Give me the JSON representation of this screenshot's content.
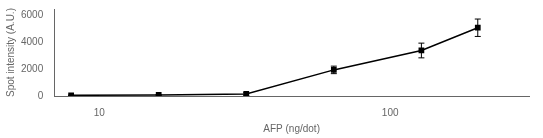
{
  "chart_data": {
    "type": "line",
    "x": [
      8,
      16,
      32,
      64,
      128,
      200
    ],
    "values": [
      50,
      80,
      150,
      1950,
      3400,
      5100
    ],
    "yerr": [
      20,
      30,
      100,
      280,
      550,
      650
    ],
    "xlabel": "AFP (ng/dot)",
    "ylabel": "Spot intensity (A.U.)",
    "xlim": [
      7,
      300
    ],
    "ylim": [
      0,
      6500
    ],
    "xticks": [
      10,
      100
    ],
    "yticks": [
      0,
      2000,
      4000,
      6000
    ],
    "log": "x",
    "grid": false,
    "color": "#000000",
    "marker": "square",
    "line_style": "solid"
  }
}
